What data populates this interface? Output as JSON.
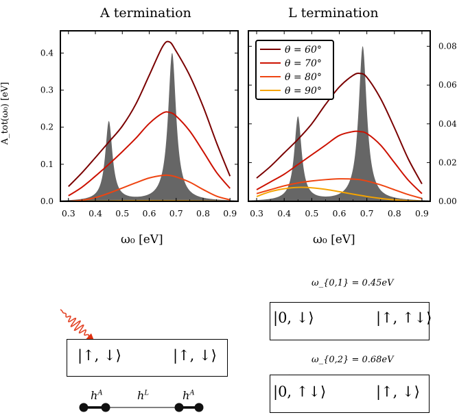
{
  "chart_data": [
    {
      "type": "line",
      "title": "A termination",
      "xlabel": "ω₀ [eV]",
      "ylabel": "A_tot(ω₀) [eV]",
      "xlim": [
        0.27,
        0.93
      ],
      "ylim": [
        0,
        0.46
      ],
      "xticks": [
        0.3,
        0.4,
        0.5,
        0.6,
        0.7,
        0.8,
        0.9
      ],
      "xtick_labels": [
        "0.3",
        "0.4",
        "0.5",
        "0.6",
        "0.7",
        "0.8",
        "0.9"
      ],
      "yticks": [
        0.0,
        0.1,
        0.2,
        0.3,
        0.4
      ],
      "ytick_labels": [
        "0.0",
        "0.1",
        "0.2",
        "0.3",
        "0.4"
      ],
      "y_axis_side": "left",
      "grid": false,
      "background_spectrum": {
        "color": "#666666",
        "peaks": [
          {
            "center": 0.45,
            "height": 0.215,
            "width": 0.016
          },
          {
            "center": 0.685,
            "height": 0.4,
            "width": 0.018
          }
        ]
      },
      "series": [
        {
          "x": [
            0.3,
            0.35,
            0.4,
            0.45,
            0.5,
            0.55,
            0.6,
            0.65,
            0.675,
            0.7,
            0.75,
            0.8,
            0.85,
            0.9
          ],
          "y": [
            0.04,
            0.077,
            0.118,
            0.16,
            0.203,
            0.262,
            0.34,
            0.418,
            0.43,
            0.405,
            0.34,
            0.256,
            0.158,
            0.068
          ],
          "color": "#7a0000"
        },
        {
          "x": [
            0.3,
            0.35,
            0.4,
            0.45,
            0.5,
            0.55,
            0.6,
            0.65,
            0.675,
            0.7,
            0.75,
            0.8,
            0.85,
            0.9
          ],
          "y": [
            0.015,
            0.038,
            0.068,
            0.1,
            0.134,
            0.17,
            0.21,
            0.238,
            0.24,
            0.23,
            0.19,
            0.135,
            0.078,
            0.035
          ],
          "color": "#cc1100"
        },
        {
          "x": [
            0.3,
            0.35,
            0.4,
            0.45,
            0.5,
            0.55,
            0.6,
            0.65,
            0.675,
            0.7,
            0.75,
            0.8,
            0.85,
            0.9
          ],
          "y": [
            0.0,
            0.003,
            0.01,
            0.022,
            0.036,
            0.05,
            0.063,
            0.07,
            0.07,
            0.066,
            0.052,
            0.032,
            0.014,
            0.004
          ],
          "color": "#ee4411"
        },
        {
          "x": [
            0.3,
            0.45,
            0.6,
            0.75,
            0.9
          ],
          "y": [
            0.0,
            0.0008,
            0.0015,
            0.001,
            0.0
          ],
          "color": "#f5a300"
        }
      ]
    },
    {
      "type": "line",
      "title": "L termination",
      "xlabel": "ω₀ [eV]",
      "xlim": [
        0.27,
        0.93
      ],
      "ylim": [
        0,
        0.088
      ],
      "xticks": [
        0.3,
        0.4,
        0.5,
        0.6,
        0.7,
        0.8,
        0.9
      ],
      "xtick_labels": [
        "0.3",
        "0.4",
        "0.5",
        "0.6",
        "0.7",
        "0.8",
        "0.9"
      ],
      "yticks": [
        0.0,
        0.02,
        0.04,
        0.06,
        0.08
      ],
      "ytick_labels": [
        "0.00",
        "0.02",
        "0.04",
        "0.06",
        "0.08"
      ],
      "y_axis_side": "right",
      "grid": false,
      "legend_position": "top-left",
      "legend": [
        "θ = 60°",
        "θ = 70°",
        "θ = 80°",
        "θ = 90°"
      ],
      "background_spectrum": {
        "color": "#666666",
        "peaks": [
          {
            "center": 0.45,
            "height": 0.0435,
            "width": 0.016
          },
          {
            "center": 0.685,
            "height": 0.08,
            "width": 0.018
          }
        ]
      },
      "series": [
        {
          "name": "θ = 60°",
          "x": [
            0.3,
            0.35,
            0.4,
            0.45,
            0.5,
            0.55,
            0.6,
            0.65,
            0.675,
            0.7,
            0.75,
            0.8,
            0.85,
            0.9
          ],
          "y": [
            0.012,
            0.018,
            0.025,
            0.032,
            0.04,
            0.05,
            0.059,
            0.065,
            0.066,
            0.064,
            0.053,
            0.038,
            0.022,
            0.009
          ],
          "color": "#7a0000"
        },
        {
          "name": "θ = 70°",
          "x": [
            0.3,
            0.35,
            0.4,
            0.45,
            0.5,
            0.55,
            0.6,
            0.65,
            0.675,
            0.7,
            0.75,
            0.8,
            0.85,
            0.9
          ],
          "y": [
            0.006,
            0.01,
            0.014,
            0.019,
            0.024,
            0.029,
            0.034,
            0.036,
            0.036,
            0.035,
            0.029,
            0.02,
            0.011,
            0.004
          ],
          "color": "#cc1100"
        },
        {
          "name": "θ = 80°",
          "x": [
            0.3,
            0.35,
            0.4,
            0.45,
            0.5,
            0.55,
            0.6,
            0.65,
            0.675,
            0.7,
            0.75,
            0.8,
            0.85,
            0.9
          ],
          "y": [
            0.004,
            0.006,
            0.008,
            0.0095,
            0.0105,
            0.0112,
            0.0116,
            0.0115,
            0.0112,
            0.0105,
            0.0085,
            0.006,
            0.0035,
            0.0015
          ],
          "color": "#ee4411"
        },
        {
          "name": "θ = 90°",
          "x": [
            0.3,
            0.35,
            0.4,
            0.45,
            0.5,
            0.55,
            0.6,
            0.65,
            0.7,
            0.75,
            0.8,
            0.85,
            0.9
          ],
          "y": [
            0.0025,
            0.005,
            0.0065,
            0.0072,
            0.007,
            0.0062,
            0.005,
            0.0037,
            0.0025,
            0.0015,
            0.0008,
            0.0003,
            0.0001
          ],
          "color": "#f5a300"
        }
      ]
    }
  ],
  "diagram": {
    "left_ket": "|↑, ↓⟩",
    "right_ket": "|↑, ↓⟩",
    "chain_labels": [
      "h^A",
      "h^L",
      "h^A"
    ],
    "transition_1": {
      "label": "ω_{0,1} = 0.45eV",
      "left_ket": "|0, ↓⟩",
      "right_ket": "|↑, ↑↓⟩"
    },
    "transition_2": {
      "label": "ω_{0,2} = 0.68eV",
      "left_ket": "|0, ↑↓⟩",
      "right_ket": "|↑, ↓⟩"
    }
  }
}
